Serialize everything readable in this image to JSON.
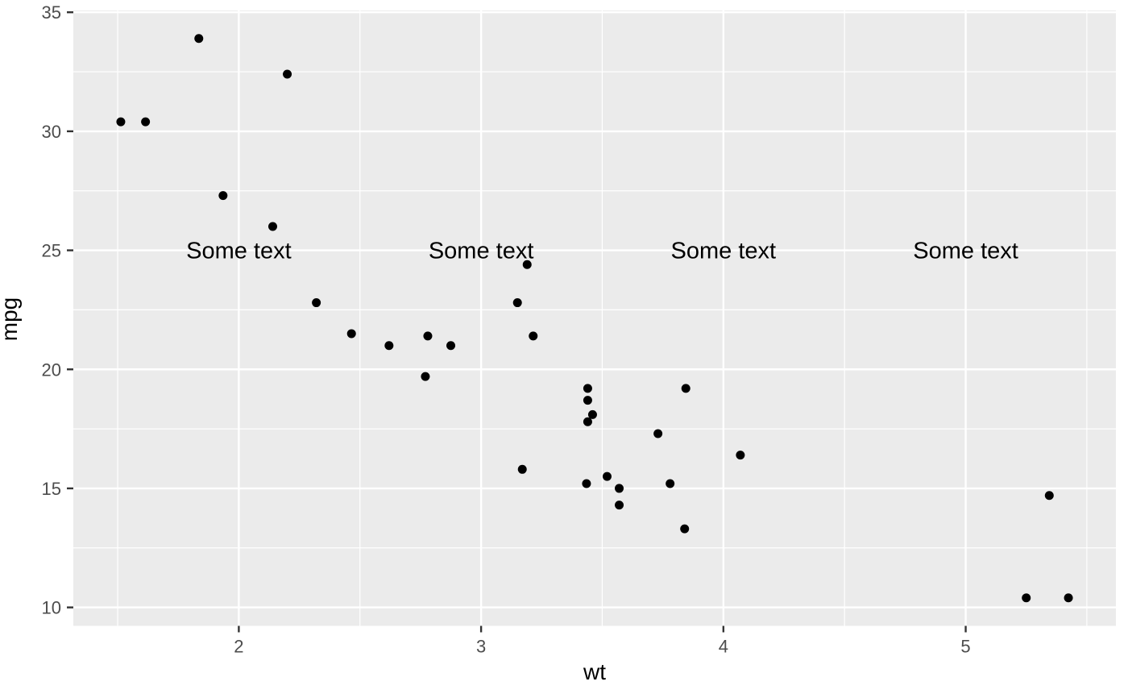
{
  "chart_data": {
    "type": "scatter",
    "title": "",
    "xlabel": "wt",
    "ylabel": "mpg",
    "xlim": [
      1.317,
      5.62
    ],
    "ylim": [
      9.225,
      35.075
    ],
    "x_ticks": [
      2,
      3,
      4,
      5
    ],
    "y_ticks": [
      10,
      15,
      20,
      25,
      30,
      35
    ],
    "x_minor_ticks": [
      1.5,
      2.5,
      3.5,
      4.5,
      5.5
    ],
    "y_minor_ticks": [
      12.5,
      17.5,
      22.5,
      27.5,
      32.5
    ],
    "grid": "on",
    "legend": "none",
    "points": [
      [
        2.62,
        21.0
      ],
      [
        2.875,
        21.0
      ],
      [
        2.32,
        22.8
      ],
      [
        3.215,
        21.4
      ],
      [
        3.44,
        18.7
      ],
      [
        3.46,
        18.1
      ],
      [
        3.57,
        14.3
      ],
      [
        3.19,
        24.4
      ],
      [
        3.15,
        22.8
      ],
      [
        3.44,
        19.2
      ],
      [
        3.44,
        17.8
      ],
      [
        4.07,
        16.4
      ],
      [
        3.73,
        17.3
      ],
      [
        3.78,
        15.2
      ],
      [
        5.25,
        10.4
      ],
      [
        5.424,
        10.4
      ],
      [
        5.345,
        14.7
      ],
      [
        2.2,
        32.4
      ],
      [
        1.615,
        30.4
      ],
      [
        1.835,
        33.9
      ],
      [
        2.465,
        21.5
      ],
      [
        3.52,
        15.5
      ],
      [
        3.435,
        15.2
      ],
      [
        3.84,
        13.3
      ],
      [
        3.845,
        19.2
      ],
      [
        1.935,
        27.3
      ],
      [
        2.14,
        26.0
      ],
      [
        1.513,
        30.4
      ],
      [
        3.17,
        15.8
      ],
      [
        2.77,
        19.7
      ],
      [
        3.57,
        15.0
      ],
      [
        2.78,
        21.4
      ]
    ],
    "annotations": [
      {
        "x": 2,
        "y": 25,
        "label": "Some text"
      },
      {
        "x": 3,
        "y": 25,
        "label": "Some text"
      },
      {
        "x": 4,
        "y": 25,
        "label": "Some text"
      },
      {
        "x": 5,
        "y": 25,
        "label": "Some text"
      }
    ],
    "colors": {
      "panel_background": "#EBEBEB",
      "grid_major": "#FFFFFF",
      "grid_minor": "#FFFFFF",
      "point": "#000000",
      "tick_mark": "#333333",
      "tick_label": "#4D4D4D",
      "axis_title": "#000000",
      "annotation_text": "#000000",
      "outer_background": "#FFFFFF"
    }
  }
}
